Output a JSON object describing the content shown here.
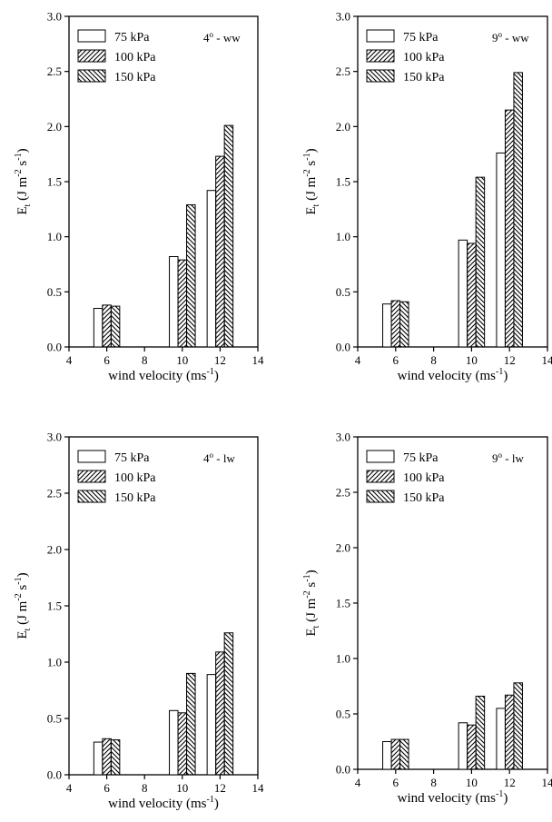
{
  "chart_data": [
    {
      "type": "bar",
      "annotation": "4",
      "annotation_sup": "o",
      "annotation_suffix": " - ww",
      "x": [
        6,
        10,
        12
      ],
      "xlim": [
        4,
        14
      ],
      "ylim": [
        0,
        3.0
      ],
      "xticks": [
        "4",
        "6",
        "8",
        "10",
        "12",
        "14"
      ],
      "yticks": [
        "0.0",
        "0.5",
        "1.0",
        "1.5",
        "2.0",
        "2.5",
        "3.0"
      ],
      "xlabel_main": "wind velocity (ms",
      "xlabel_sup": "-1",
      "xlabel_close": ")",
      "ylabel": {
        "base": "E",
        "sub": "t",
        "open": " (J m",
        "sup1": "-2",
        "mid": " s",
        "sup2": "-1",
        "close": ")"
      },
      "legend_position": "top-left",
      "series": [
        {
          "name": "75 kPa",
          "pattern": "none",
          "values": [
            0.35,
            0.82,
            1.42
          ]
        },
        {
          "name": "100 kPa",
          "pattern": "hatch-forward",
          "values": [
            0.38,
            0.79,
            1.73
          ]
        },
        {
          "name": "150 kPa",
          "pattern": "hatch-back",
          "values": [
            0.37,
            1.29,
            2.01
          ]
        }
      ]
    },
    {
      "type": "bar",
      "annotation": "9",
      "annotation_sup": "o",
      "annotation_suffix": " - ww",
      "x": [
        6,
        10,
        12
      ],
      "xlim": [
        4,
        14
      ],
      "ylim": [
        0,
        3.0
      ],
      "xticks": [
        "4",
        "6",
        "8",
        "10",
        "12",
        "14"
      ],
      "yticks": [
        "0.0",
        "0.5",
        "1.0",
        "1.5",
        "2.0",
        "2.5",
        "3.0"
      ],
      "xlabel_main": "wind velocity (ms",
      "xlabel_sup": "-1",
      "xlabel_close": ")",
      "ylabel": {
        "base": "E",
        "sub": "t",
        "open": " (J m",
        "sup1": "-2",
        "mid": " s",
        "sup2": "-1",
        "close": ")"
      },
      "legend_position": "top-left",
      "series": [
        {
          "name": "75 kPa",
          "pattern": "none",
          "values": [
            0.39,
            0.97,
            1.76
          ]
        },
        {
          "name": "100 kPa",
          "pattern": "hatch-forward",
          "values": [
            0.42,
            0.94,
            2.15
          ]
        },
        {
          "name": "150 kPa",
          "pattern": "hatch-back",
          "values": [
            0.41,
            1.54,
            2.49
          ]
        }
      ]
    },
    {
      "type": "bar",
      "annotation": "4",
      "annotation_sup": "o",
      "annotation_suffix": " - lw",
      "x": [
        6,
        10,
        12
      ],
      "xlim": [
        4,
        14
      ],
      "ylim": [
        0,
        3.0
      ],
      "xticks": [
        "4",
        "6",
        "8",
        "10",
        "12",
        "14"
      ],
      "yticks": [
        "0.0",
        "0.5",
        "1.0",
        "1.5",
        "2.0",
        "2.5",
        "3.0"
      ],
      "xlabel_main": "wind velocity (ms",
      "xlabel_sup": "-1",
      "xlabel_close": ")",
      "ylabel": {
        "base": "E",
        "sub": "t",
        "open": " (J m",
        "sup1": "-2",
        "mid": " s",
        "sup2": "-1",
        "close": ")"
      },
      "legend_position": "top-left",
      "series": [
        {
          "name": "75 kPa",
          "pattern": "none",
          "values": [
            0.29,
            0.57,
            0.89
          ]
        },
        {
          "name": "100 kPa",
          "pattern": "hatch-forward",
          "values": [
            0.32,
            0.55,
            1.09
          ]
        },
        {
          "name": "150 kPa",
          "pattern": "hatch-back",
          "values": [
            0.31,
            0.9,
            1.26
          ]
        }
      ]
    },
    {
      "type": "bar",
      "annotation": "9",
      "annotation_sup": "o",
      "annotation_suffix": " - lw",
      "x": [
        6,
        10,
        12
      ],
      "xlim": [
        4,
        14
      ],
      "ylim": [
        0,
        3.0
      ],
      "xticks": [
        "4",
        "6",
        "8",
        "10",
        "12",
        "14"
      ],
      "yticks": [
        "0.0",
        "0.5",
        "1.0",
        "1.5",
        "2.0",
        "2.5",
        "3.0"
      ],
      "xlabel_main": "wind velocity (ms",
      "xlabel_sup": "-1",
      "xlabel_close": ")",
      "ylabel": {
        "base": "E",
        "sub": "t",
        "open": " (J m",
        "sup1": "-2",
        "mid": " s",
        "sup2": "-1",
        "close": ")"
      },
      "legend_position": "top-left",
      "series": [
        {
          "name": "75 kPa",
          "pattern": "none",
          "values": [
            0.25,
            0.42,
            0.55
          ]
        },
        {
          "name": "100 kPa",
          "pattern": "hatch-forward",
          "values": [
            0.27,
            0.4,
            0.67
          ]
        },
        {
          "name": "150 kPa",
          "pattern": "hatch-back",
          "values": [
            0.27,
            0.66,
            0.78
          ]
        }
      ]
    }
  ]
}
